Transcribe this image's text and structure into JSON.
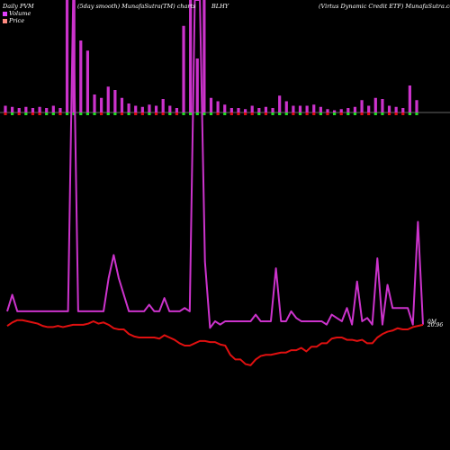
{
  "header": {
    "left": "Daily PVM",
    "mid": "(5day smooth) MunafaSutra(TM) charts",
    "ticker": "BLHY",
    "right": "(Virtus Dynamic Credit ETF) MunafaSutra.com"
  },
  "legend": [
    {
      "label": "Volume",
      "color": "#e040fb"
    },
    {
      "label": "Price",
      "color": "#ff8a80"
    }
  ],
  "colors": {
    "volume_line": "#cc33cc",
    "price_line": "#e01010",
    "vol_bar": "#cc33cc",
    "up_bar": "#22dd22",
    "down_bar": "#dd1111",
    "zero_line": "#cccccc"
  },
  "chart_data": {
    "type": "line",
    "series": [
      {
        "name": "Volume",
        "values": [
          0.06,
          0.11,
          0.06,
          0.06,
          0.06,
          0.06,
          0.06,
          0.06,
          0.06,
          0.06,
          0.06,
          0.06,
          0.06,
          1.0,
          0.06,
          0.06,
          0.06,
          0.06,
          0.06,
          0.06,
          0.16,
          0.23,
          0.16,
          0.11,
          0.06,
          0.06,
          0.06,
          0.06,
          0.08,
          0.06,
          0.06,
          0.1,
          0.06,
          0.06,
          0.06,
          0.07,
          0.06,
          1.0,
          1.0,
          0.21,
          0.01,
          0.03,
          0.02,
          0.03,
          0.03,
          0.03,
          0.03,
          0.03,
          0.03,
          0.05,
          0.03,
          0.03,
          0.03,
          0.19,
          0.03,
          0.03,
          0.06,
          0.04,
          0.03,
          0.03,
          0.03,
          0.03,
          0.03,
          0.02,
          0.05,
          0.04,
          0.03,
          0.07,
          0.02,
          0.15,
          0.03,
          0.04,
          0.02,
          0.22,
          0.02,
          0.14,
          0.07,
          0.07,
          0.07,
          0.07,
          0.02,
          0.33,
          0.02
        ]
      },
      {
        "name": "Price",
        "values": [
          20.95,
          20.98,
          21.0,
          21.0,
          20.99,
          20.98,
          20.97,
          20.95,
          20.94,
          20.94,
          20.95,
          20.94,
          20.95,
          20.96,
          20.96,
          20.96,
          20.97,
          20.99,
          20.97,
          20.98,
          20.96,
          20.93,
          20.92,
          20.92,
          20.88,
          20.86,
          20.85,
          20.85,
          20.85,
          20.85,
          20.84,
          20.87,
          20.85,
          20.83,
          20.8,
          20.78,
          20.78,
          20.8,
          20.82,
          20.82,
          20.81,
          20.81,
          20.79,
          20.78,
          20.7,
          20.66,
          20.66,
          20.62,
          20.61,
          20.66,
          20.69,
          20.7,
          20.7,
          20.71,
          20.72,
          20.72,
          20.74,
          20.74,
          20.76,
          20.73,
          20.77,
          20.77,
          20.8,
          20.8,
          20.84,
          20.85,
          20.85,
          20.83,
          20.83,
          20.82,
          20.83,
          20.8,
          20.8,
          20.85,
          20.88,
          20.9,
          20.91,
          20.93,
          20.92,
          20.92,
          20.94,
          20.95,
          20.96
        ]
      }
    ],
    "volume_bars": [
      {
        "h": 0.06,
        "d": "down"
      },
      {
        "h": 0.05,
        "d": "up"
      },
      {
        "h": 0.04,
        "d": "down"
      },
      {
        "h": 0.05,
        "d": "up"
      },
      {
        "h": 0.04,
        "d": "down"
      },
      {
        "h": 0.05,
        "d": "down"
      },
      {
        "h": 0.04,
        "d": "up"
      },
      {
        "h": 0.06,
        "d": "up"
      },
      {
        "h": 0.04,
        "d": "down"
      },
      {
        "h": 1.0,
        "d": "up"
      },
      {
        "h": 1.0,
        "d": "up"
      },
      {
        "h": 0.64,
        "d": "up"
      },
      {
        "h": 0.55,
        "d": "up"
      },
      {
        "h": 0.16,
        "d": "up"
      },
      {
        "h": 0.13,
        "d": "down"
      },
      {
        "h": 0.23,
        "d": "up"
      },
      {
        "h": 0.2,
        "d": "up"
      },
      {
        "h": 0.13,
        "d": "down"
      },
      {
        "h": 0.08,
        "d": "up"
      },
      {
        "h": 0.06,
        "d": "down"
      },
      {
        "h": 0.05,
        "d": "down"
      },
      {
        "h": 0.07,
        "d": "up"
      },
      {
        "h": 0.06,
        "d": "down"
      },
      {
        "h": 0.12,
        "d": "down"
      },
      {
        "h": 0.06,
        "d": "up"
      },
      {
        "h": 0.04,
        "d": "down"
      },
      {
        "h": 0.77,
        "d": "up"
      },
      {
        "h": 1.0,
        "d": "up"
      },
      {
        "h": 0.48,
        "d": "up"
      },
      {
        "h": 1.0,
        "d": "up"
      },
      {
        "h": 0.13,
        "d": "up"
      },
      {
        "h": 0.1,
        "d": "down"
      },
      {
        "h": 0.07,
        "d": "up"
      },
      {
        "h": 0.04,
        "d": "down"
      },
      {
        "h": 0.04,
        "d": "down"
      },
      {
        "h": 0.03,
        "d": "down"
      },
      {
        "h": 0.06,
        "d": "down"
      },
      {
        "h": 0.04,
        "d": "up"
      },
      {
        "h": 0.05,
        "d": "down"
      },
      {
        "h": 0.04,
        "d": "up"
      },
      {
        "h": 0.15,
        "d": "up"
      },
      {
        "h": 0.1,
        "d": "up"
      },
      {
        "h": 0.06,
        "d": "down"
      },
      {
        "h": 0.06,
        "d": "up"
      },
      {
        "h": 0.06,
        "d": "down"
      },
      {
        "h": 0.07,
        "d": "down"
      },
      {
        "h": 0.05,
        "d": "up"
      },
      {
        "h": 0.03,
        "d": "down"
      },
      {
        "h": 0.02,
        "d": "up"
      },
      {
        "h": 0.03,
        "d": "down"
      },
      {
        "h": 0.04,
        "d": "up"
      },
      {
        "h": 0.05,
        "d": "up"
      },
      {
        "h": 0.11,
        "d": "down"
      },
      {
        "h": 0.06,
        "d": "down"
      },
      {
        "h": 0.13,
        "d": "up"
      },
      {
        "h": 0.12,
        "d": "up"
      },
      {
        "h": 0.06,
        "d": "down"
      },
      {
        "h": 0.05,
        "d": "down"
      },
      {
        "h": 0.04,
        "d": "down"
      },
      {
        "h": 0.24,
        "d": "up"
      },
      {
        "h": 0.11,
        "d": "up"
      }
    ],
    "end_label_volume": "0M",
    "end_label_price": "20.96",
    "ylim": [
      20.5,
      21.2
    ]
  }
}
